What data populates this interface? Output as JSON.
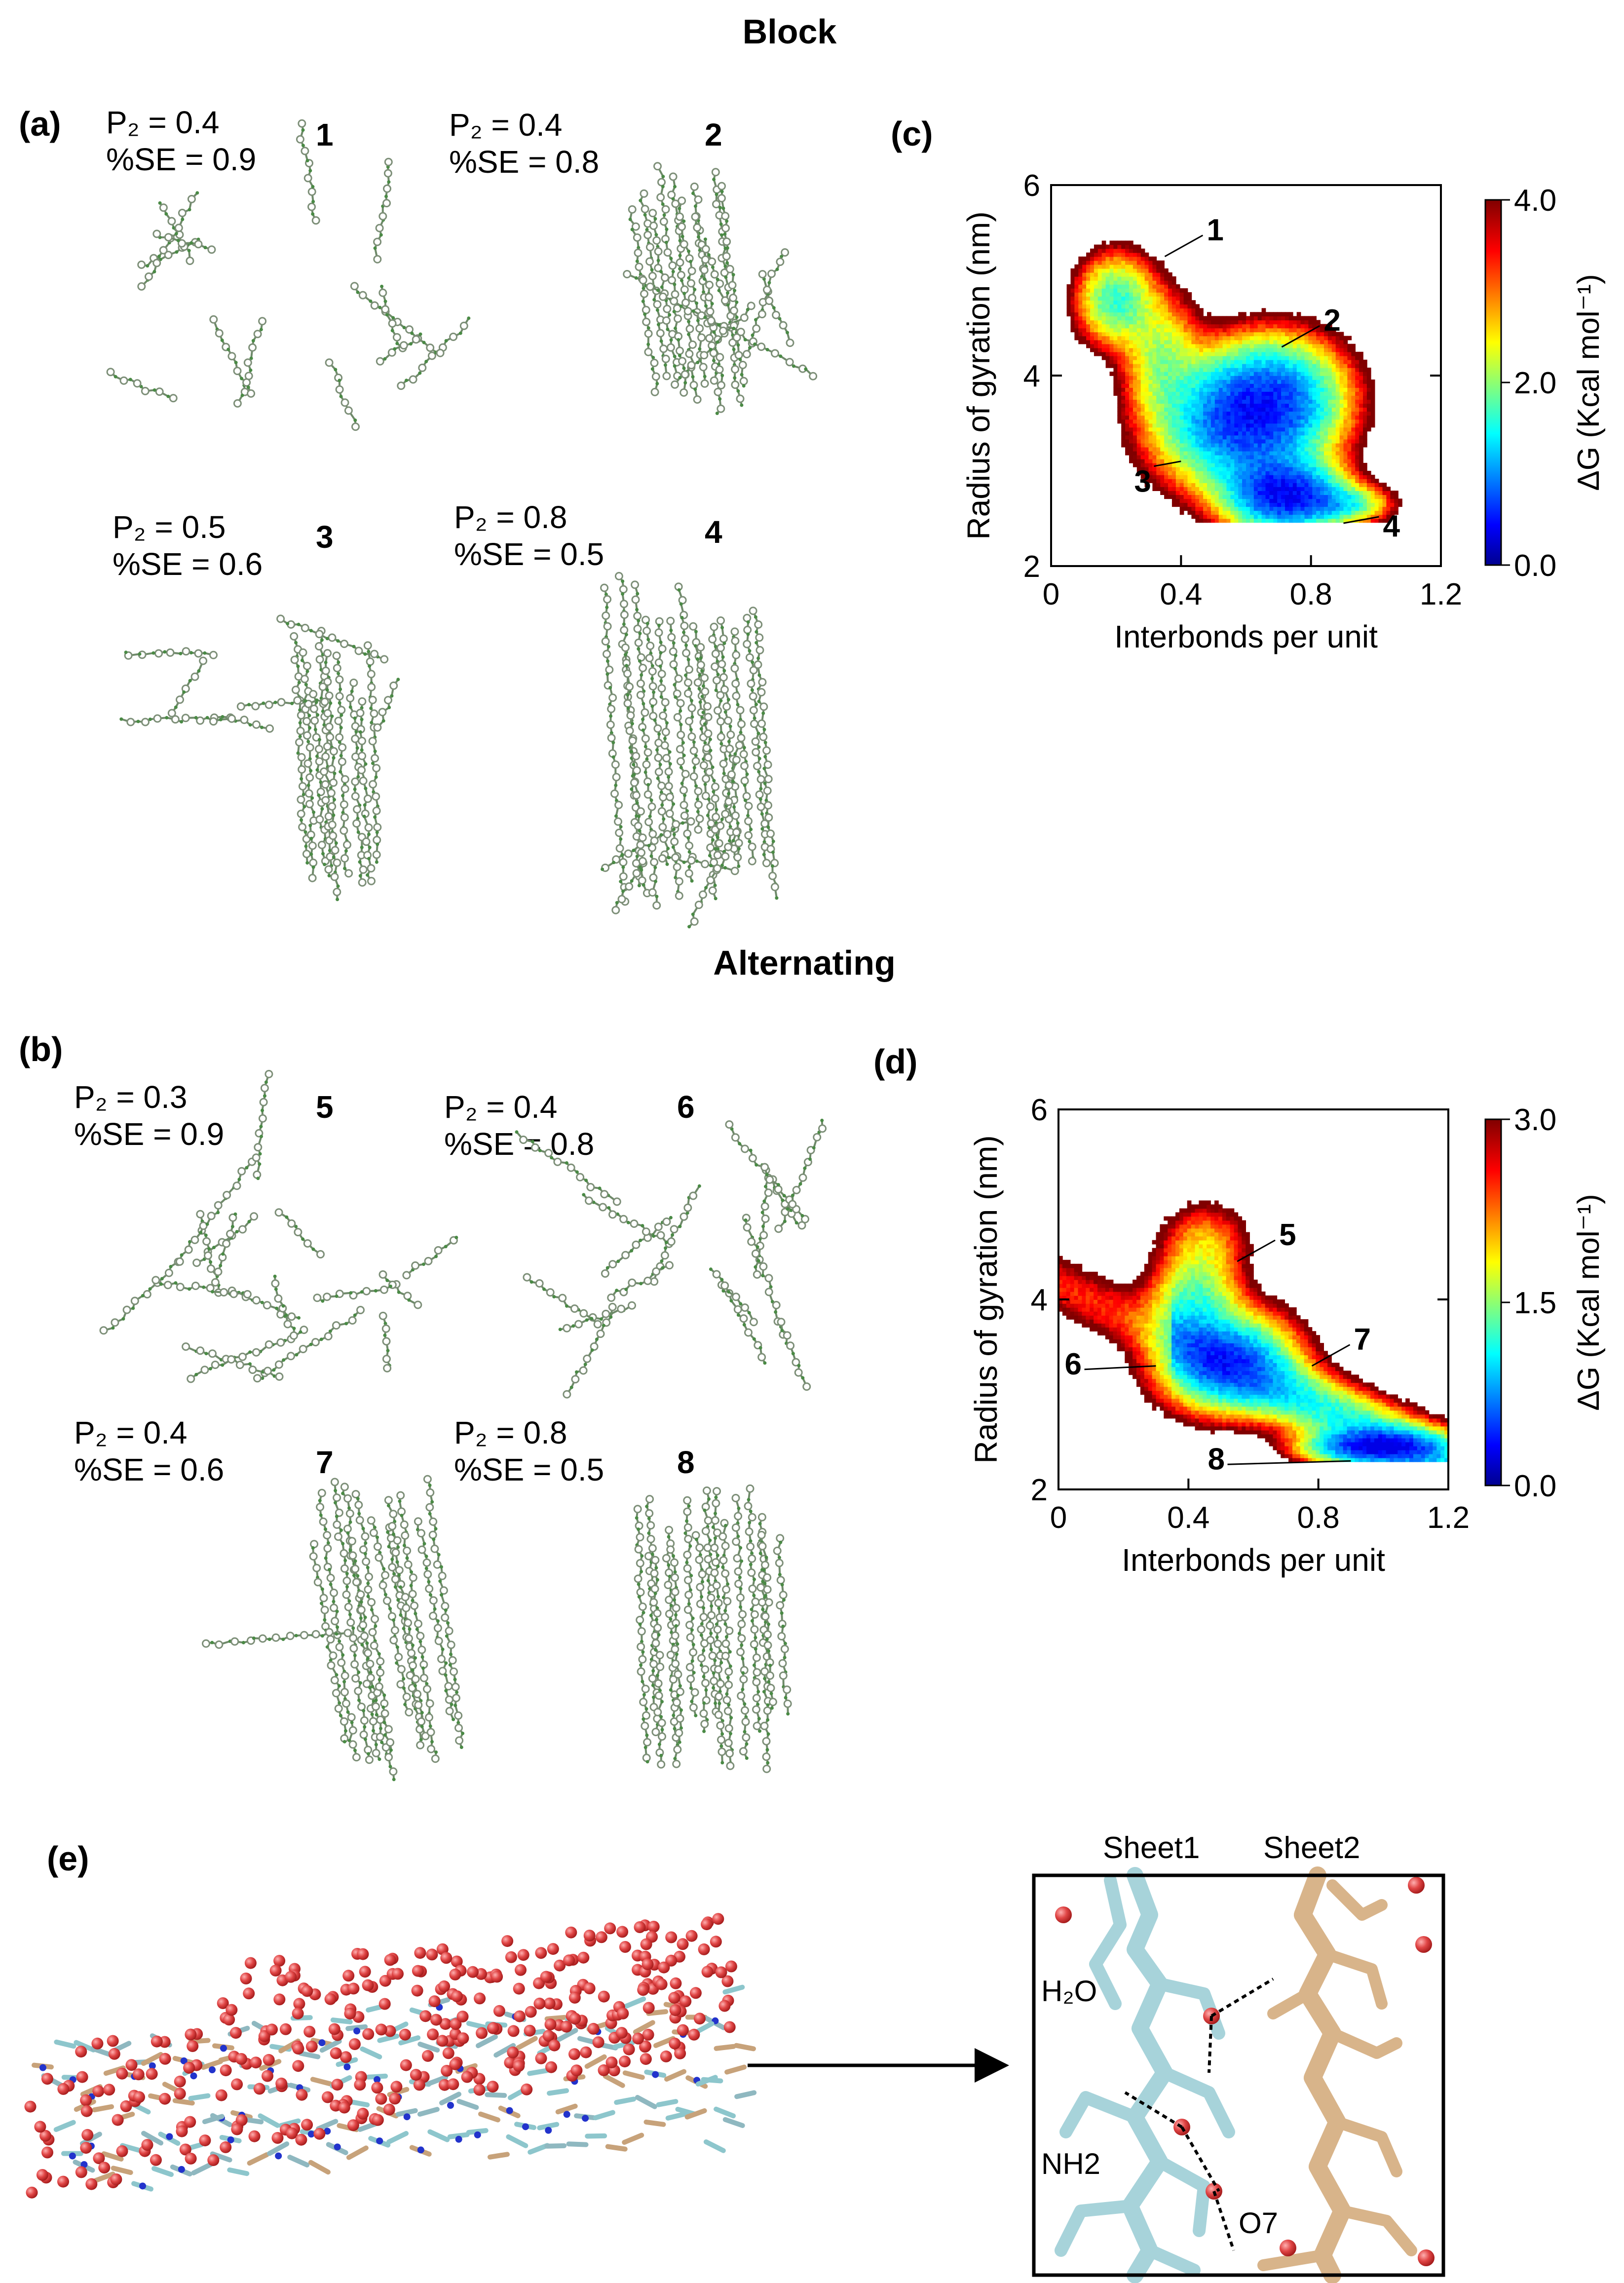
{
  "section_titles": {
    "block": "Block",
    "alternating": "Alternating"
  },
  "panel_labels": {
    "a": "(a)",
    "b": "(b)",
    "c": "(c)",
    "d": "(d)",
    "e": "(e)"
  },
  "conformations": [
    {
      "id": "1",
      "p2": "P₂ = 0.4",
      "se": "%SE = 0.9"
    },
    {
      "id": "2",
      "p2": "P₂ = 0.4",
      "se": "%SE = 0.8"
    },
    {
      "id": "3",
      "p2": "P₂ = 0.5",
      "se": "%SE = 0.6"
    },
    {
      "id": "4",
      "p2": "P₂ = 0.8",
      "se": "%SE = 0.5"
    },
    {
      "id": "5",
      "p2": "P₂ = 0.3",
      "se": "%SE = 0.9"
    },
    {
      "id": "6",
      "p2": "P₂ = 0.4",
      "se": "%SE = 0.8"
    },
    {
      "id": "7",
      "p2": "P₂ = 0.4",
      "se": "%SE = 0.6"
    },
    {
      "id": "8",
      "p2": "P₂ = 0.8",
      "se": "%SE = 0.5"
    }
  ],
  "inset_labels": {
    "sheet1": "Sheet1",
    "sheet2": "Sheet2",
    "h2o": "H₂O",
    "nh2": "NH2",
    "o7": "O7"
  },
  "colors": {
    "cyan_sheet": "#a7d3da",
    "tan_sheet": "#d8b48a",
    "water": "#d83a3a",
    "nitrogen": "#2233cc",
    "chain": "#b9c6b3"
  },
  "chart_data": [
    {
      "panel": "c",
      "type": "heatmap",
      "xlabel": "Interbonds per unit",
      "ylabel": "Radius of gyration (nm)",
      "xlim": [
        0,
        1.2
      ],
      "ylim": [
        2,
        6
      ],
      "xticks": [
        "0",
        "0.4",
        "0.8",
        "1.2"
      ],
      "yticks": [
        "2",
        "4",
        "6"
      ],
      "colorbar": {
        "label": "ΔG (Kcal mol⁻¹)",
        "range": [
          0.0,
          4.0
        ],
        "ticks": [
          "0.0",
          "2.0",
          "4.0"
        ]
      },
      "annotations": [
        {
          "label": "1",
          "x": 0.35,
          "y": 5.25
        },
        {
          "label": "2",
          "x": 0.71,
          "y": 4.3
        },
        {
          "label": "3",
          "x": 0.4,
          "y": 3.1
        },
        {
          "label": "4",
          "x": 0.9,
          "y": 2.45
        }
      ]
    },
    {
      "panel": "d",
      "type": "heatmap",
      "xlabel": "Interbonds per unit",
      "ylabel": "Radius of gyration (nm)",
      "xlim": [
        0,
        1.2
      ],
      "ylim": [
        2,
        6
      ],
      "xticks": [
        "0",
        "0.4",
        "0.8",
        "1.2"
      ],
      "yticks": [
        "2",
        "4",
        "6"
      ],
      "colorbar": {
        "label": "ΔG (Kcal mol⁻¹)",
        "range": [
          0.0,
          3.0
        ],
        "ticks": [
          "0.0",
          "1.5",
          "3.0"
        ]
      },
      "annotations": [
        {
          "label": "5",
          "x": 0.55,
          "y": 4.4
        },
        {
          "label": "6",
          "x": 0.3,
          "y": 3.3
        },
        {
          "label": "7",
          "x": 0.78,
          "y": 3.3
        },
        {
          "label": "8",
          "x": 0.9,
          "y": 2.3
        }
      ]
    }
  ]
}
